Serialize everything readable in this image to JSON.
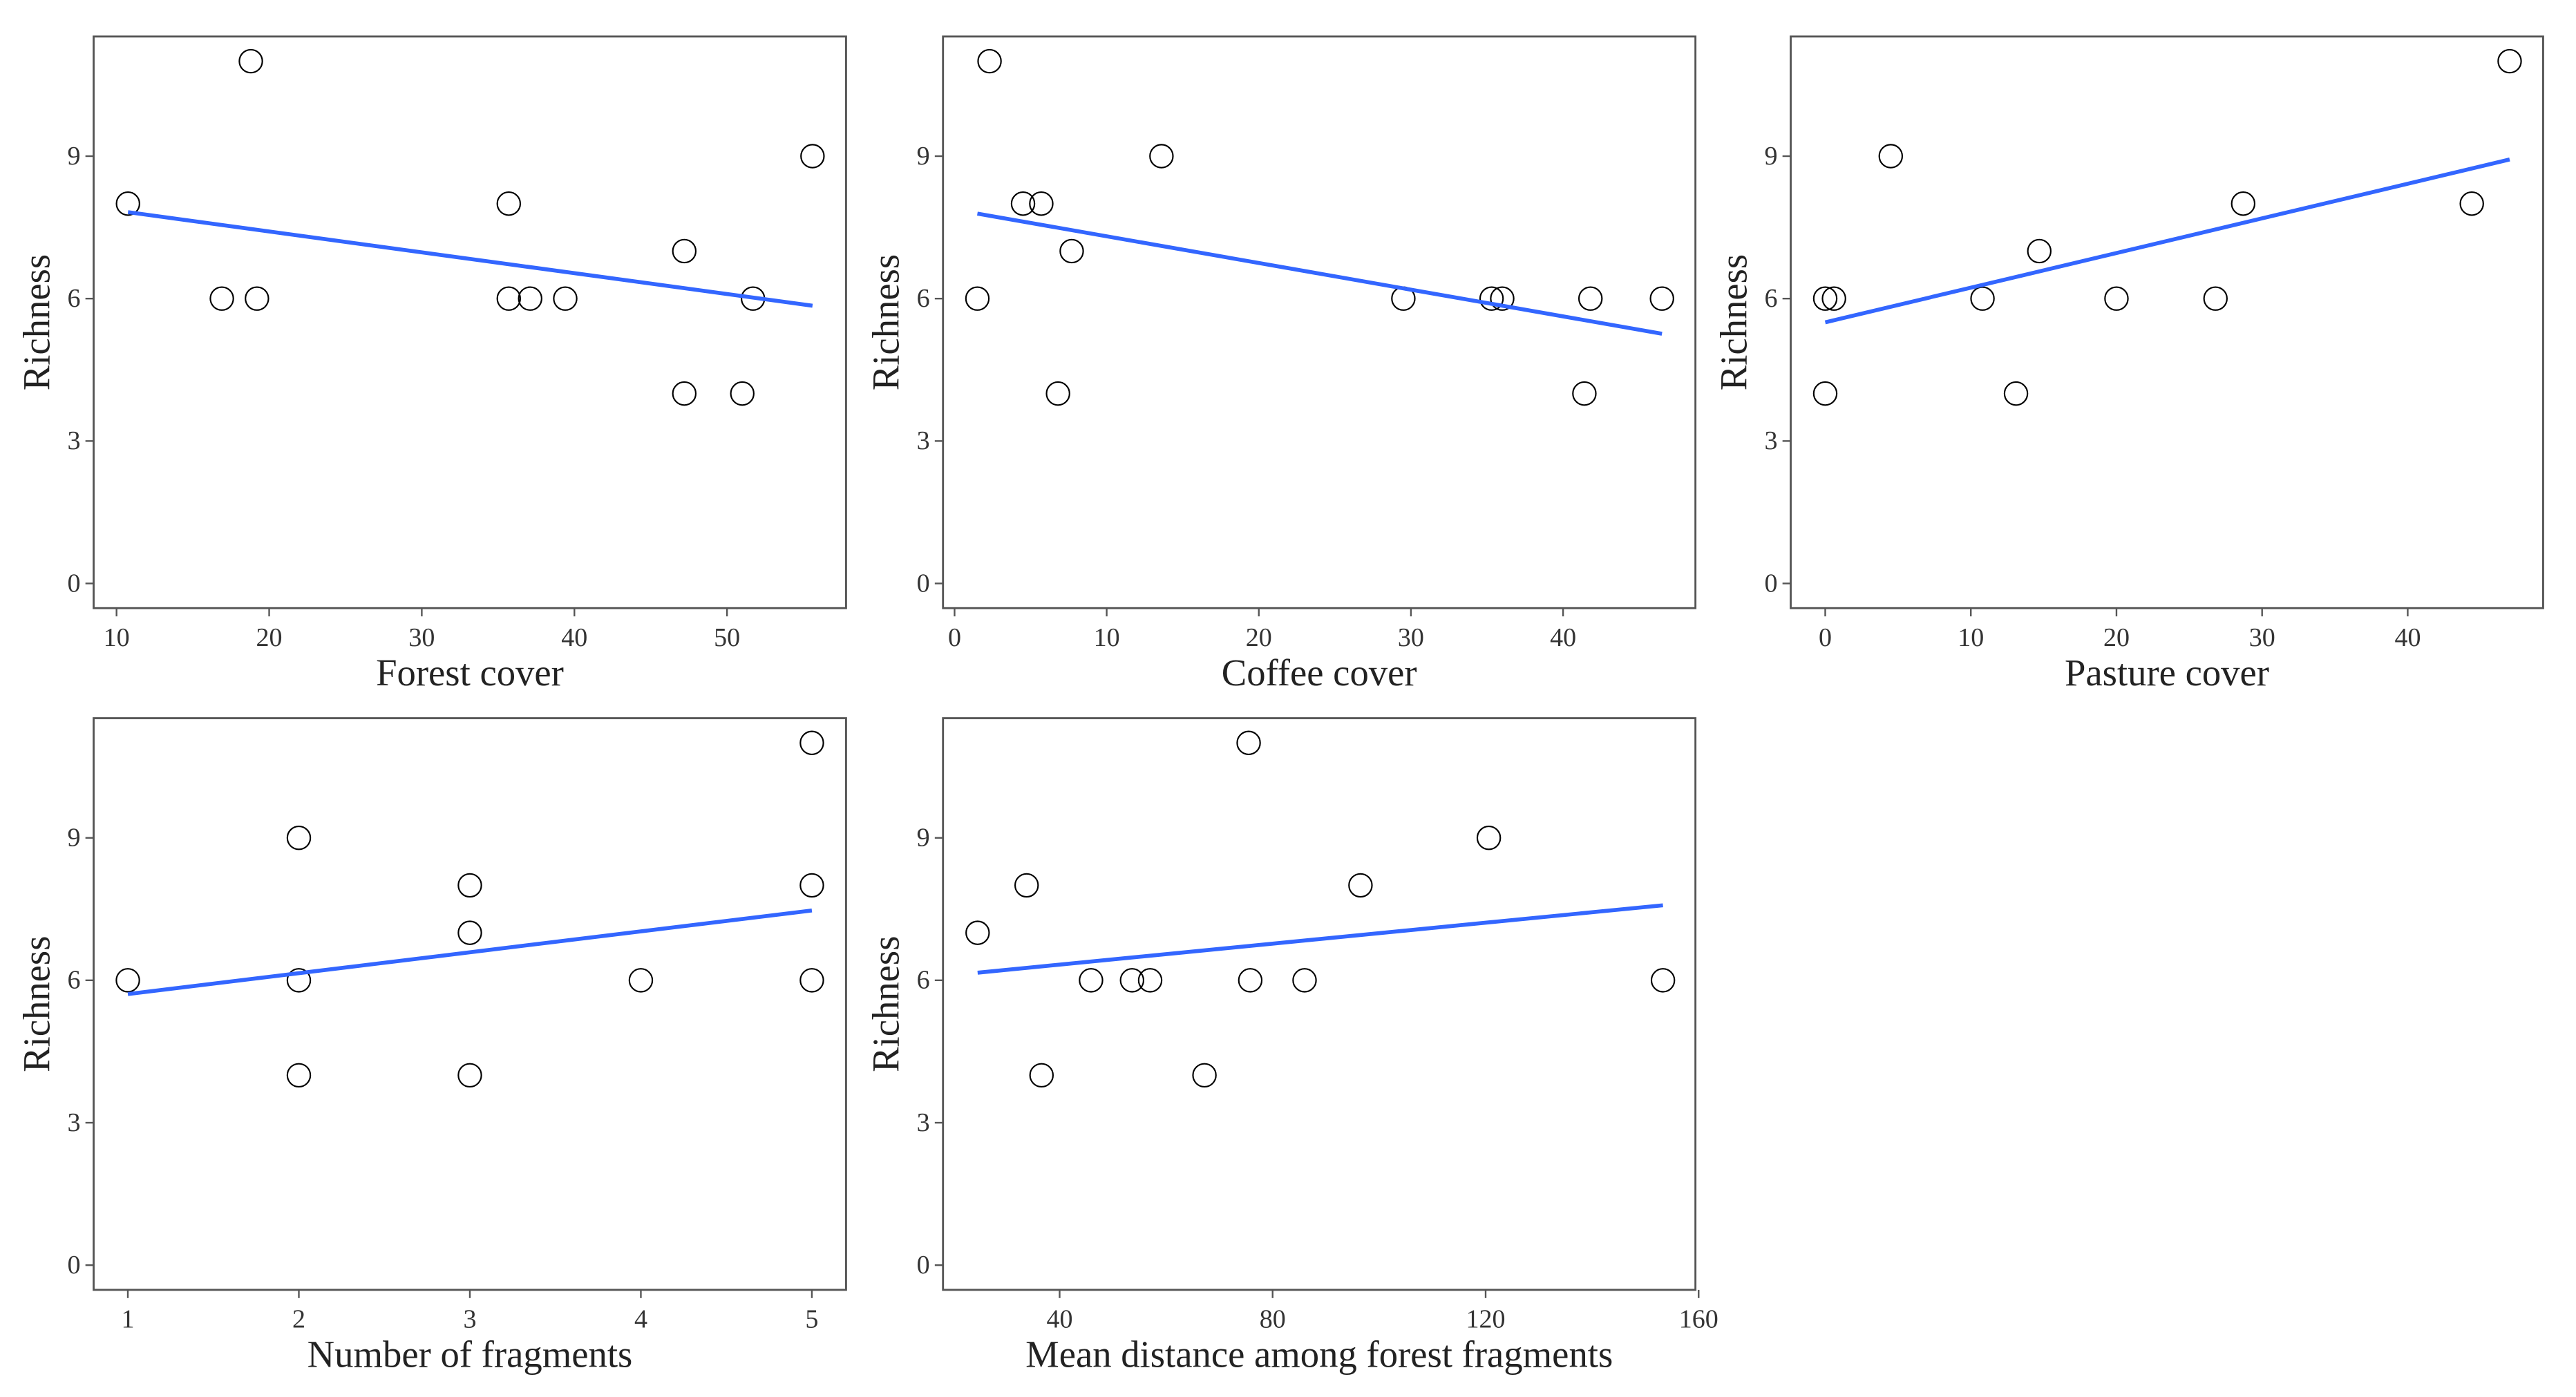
{
  "chart_data": [
    {
      "type": "scatter",
      "xlabel": "Forest cover",
      "ylabel": "Richness",
      "x": [
        10.75,
        16.9,
        18.8,
        19.2,
        35.7,
        35.7,
        37.1,
        39.4,
        47.2,
        47.2,
        51.0,
        51.7,
        55.6
      ],
      "values": [
        8,
        6,
        11,
        6,
        8,
        6,
        6,
        6,
        7,
        4,
        4,
        6,
        9
      ],
      "trend": {
        "x": [
          10.75,
          55.6
        ],
        "values": [
          7.82,
          5.85
        ]
      },
      "xlim": [
        8.5,
        57.8
      ],
      "ylim": [
        -0.52,
        11.52
      ],
      "xticks": [
        10,
        20,
        30,
        40,
        50
      ],
      "yticks": [
        0,
        3,
        6,
        9
      ],
      "marker_color": "#000000",
      "line_color": "#3366ff"
    },
    {
      "type": "scatter",
      "xlabel": "Coffee cover",
      "ylabel": "Richness",
      "x": [
        1.5,
        2.3,
        4.5,
        5.7,
        6.8,
        7.7,
        13.6,
        29.5,
        35.3,
        36.0,
        41.4,
        41.8,
        46.5
      ],
      "values": [
        6,
        11,
        8,
        8,
        4,
        7,
        9,
        6,
        6,
        6,
        4,
        6,
        6
      ],
      "trend": {
        "x": [
          1.5,
          46.5
        ],
        "values": [
          7.79,
          5.26
        ]
      },
      "xlim": [
        -0.76,
        48.7
      ],
      "ylim": [
        -0.52,
        11.52
      ],
      "xticks": [
        0,
        10,
        20,
        30,
        40
      ],
      "yticks": [
        0,
        3,
        6,
        9
      ],
      "marker_color": "#000000",
      "line_color": "#3366ff"
    },
    {
      "type": "scatter",
      "xlabel": "Pasture cover",
      "ylabel": "Richness",
      "x": [
        0,
        0,
        0.6,
        4.5,
        10.8,
        13.1,
        14.7,
        20,
        26.8,
        28.7,
        44.4,
        47
      ],
      "values": [
        6,
        4,
        6,
        9,
        6,
        4,
        7,
        6,
        6,
        8,
        8,
        11
      ],
      "trend": {
        "x": [
          0,
          47
        ],
        "values": [
          5.5,
          8.93
        ]
      },
      "xlim": [
        -2.37,
        49.3
      ],
      "ylim": [
        -0.52,
        11.52
      ],
      "xticks": [
        0,
        10,
        20,
        30,
        40
      ],
      "yticks": [
        0,
        3,
        6,
        9
      ],
      "marker_color": "#000000",
      "line_color": "#3366ff"
    },
    {
      "type": "scatter",
      "xlabel": "Number of fragments",
      "ylabel": "Richness",
      "x": [
        1,
        2,
        2,
        2,
        3,
        3,
        3,
        4,
        5,
        5,
        5
      ],
      "values": [
        6,
        9,
        6,
        4,
        8,
        7,
        4,
        6,
        11,
        8,
        6
      ],
      "trend": {
        "x": [
          1,
          5
        ],
        "values": [
          5.71,
          7.47
        ]
      },
      "xlim": [
        0.8,
        5.2
      ],
      "ylim": [
        -0.52,
        11.52
      ],
      "xticks": [
        1,
        2,
        3,
        4,
        5
      ],
      "yticks": [
        0,
        3,
        6,
        9
      ],
      "marker_color": "#000000",
      "line_color": "#3366ff"
    },
    {
      "type": "scatter",
      "xlabel": "Mean distance among forest fragments",
      "ylabel": "Richness",
      "x": [
        24.6,
        33.8,
        36.6,
        45.9,
        53.6,
        57,
        67.2,
        75.5,
        75.8,
        86,
        96.5,
        120.6,
        153.3
      ],
      "values": [
        7,
        8,
        4,
        6,
        6,
        6,
        4,
        11,
        6,
        6,
        8,
        9,
        6
      ],
      "trend": {
        "x": [
          24.6,
          153.3
        ],
        "values": [
          6.16,
          7.58
        ]
      },
      "xlim": [
        18.1,
        159.4
      ],
      "ylim": [
        -0.52,
        11.52
      ],
      "xticks": [
        40,
        80,
        120,
        160
      ],
      "yticks": [
        0,
        3,
        6,
        9
      ],
      "marker_color": "#000000",
      "line_color": "#3366ff"
    }
  ]
}
